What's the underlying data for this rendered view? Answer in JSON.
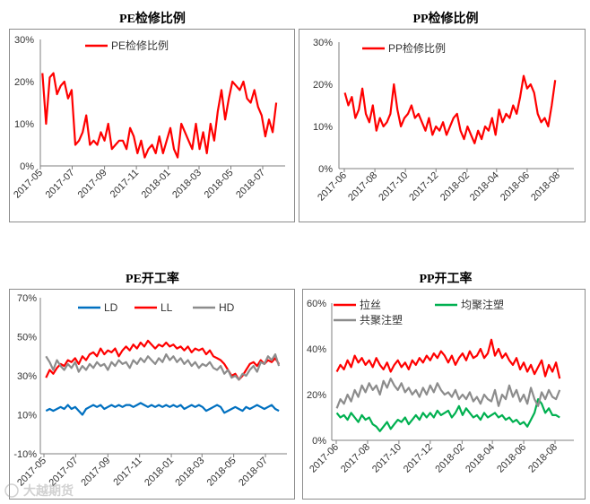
{
  "watermark": "大越期货",
  "chart_data": [
    {
      "type": "line",
      "title": "PE检修比例",
      "x_tick_labels": [
        "2017-05",
        "2017-07",
        "2017-09",
        "2017-11",
        "2018-01",
        "2018-03",
        "2018-05",
        "2018-07"
      ],
      "y_tick_labels": [
        "0%",
        "10%",
        "20%",
        "30%"
      ],
      "ylim": [
        0,
        30
      ],
      "grid": false,
      "legend_position": "top-left",
      "x": [
        "2017-05-05",
        "2017-05-12",
        "2017-05-19",
        "2017-05-26",
        "2017-06-02",
        "2017-06-09",
        "2017-06-16",
        "2017-06-23",
        "2017-06-30",
        "2017-07-07",
        "2017-07-14",
        "2017-07-21",
        "2017-07-28",
        "2017-08-04",
        "2017-08-11",
        "2017-08-18",
        "2017-08-25",
        "2017-09-01",
        "2017-09-08",
        "2017-09-15",
        "2017-09-22",
        "2017-09-29",
        "2017-10-06",
        "2017-10-13",
        "2017-10-20",
        "2017-10-27",
        "2017-11-03",
        "2017-11-10",
        "2017-11-17",
        "2017-11-24",
        "2017-12-01",
        "2017-12-08",
        "2017-12-15",
        "2017-12-22",
        "2017-12-29",
        "2018-01-05",
        "2018-01-12",
        "2018-01-19",
        "2018-01-26",
        "2018-02-02",
        "2018-02-09",
        "2018-02-16",
        "2018-02-23",
        "2018-03-02",
        "2018-03-09",
        "2018-03-16",
        "2018-03-23",
        "2018-03-30",
        "2018-04-06",
        "2018-04-13",
        "2018-04-20",
        "2018-04-27",
        "2018-05-04",
        "2018-05-11",
        "2018-05-18",
        "2018-05-25",
        "2018-06-01",
        "2018-06-08",
        "2018-06-15",
        "2018-06-22",
        "2018-06-29",
        "2018-07-06",
        "2018-07-13",
        "2018-07-20",
        "2018-07-27"
      ],
      "series": [
        {
          "name": "PE检修比例",
          "color": "#ff0000",
          "values": [
            22,
            10,
            21,
            22,
            17,
            19,
            20,
            16,
            18,
            5,
            6,
            8,
            12,
            5,
            6,
            5,
            8,
            6,
            10,
            4,
            5,
            6,
            6,
            4,
            9,
            7,
            3,
            6,
            2,
            4,
            5,
            3,
            7,
            3,
            6,
            9,
            4,
            2,
            10,
            8,
            6,
            4,
            10,
            4,
            8,
            3,
            10,
            6,
            13,
            18,
            11,
            16,
            20,
            19,
            18,
            20,
            16,
            15,
            18,
            14,
            12,
            7,
            11,
            8,
            15
          ]
        }
      ]
    },
    {
      "type": "line",
      "title": "PP检修比例",
      "x_tick_labels": [
        "2017-06",
        "2017-08",
        "2017-10",
        "2017-12",
        "2018-02",
        "2018-04",
        "2018-06",
        "2018-08"
      ],
      "y_tick_labels": [
        "0%",
        "10%",
        "20%",
        "30%"
      ],
      "ylim": [
        0,
        30
      ],
      "grid": false,
      "legend_position": "top-left",
      "x": [
        "2017-06-02",
        "2017-06-09",
        "2017-06-16",
        "2017-06-23",
        "2017-06-30",
        "2017-07-07",
        "2017-07-14",
        "2017-07-21",
        "2017-07-28",
        "2017-08-04",
        "2017-08-11",
        "2017-08-18",
        "2017-08-25",
        "2017-09-01",
        "2017-09-08",
        "2017-09-15",
        "2017-09-22",
        "2017-09-29",
        "2017-10-06",
        "2017-10-13",
        "2017-10-20",
        "2017-10-27",
        "2017-11-03",
        "2017-11-10",
        "2017-11-17",
        "2017-11-24",
        "2017-12-01",
        "2017-12-08",
        "2017-12-15",
        "2017-12-22",
        "2017-12-29",
        "2018-01-05",
        "2018-01-12",
        "2018-01-19",
        "2018-01-26",
        "2018-02-02",
        "2018-02-09",
        "2018-02-16",
        "2018-02-23",
        "2018-03-02",
        "2018-03-09",
        "2018-03-16",
        "2018-03-23",
        "2018-03-30",
        "2018-04-06",
        "2018-04-13",
        "2018-04-20",
        "2018-04-27",
        "2018-05-04",
        "2018-05-11",
        "2018-05-18",
        "2018-05-25",
        "2018-06-01",
        "2018-06-08",
        "2018-06-15",
        "2018-06-22",
        "2018-06-29",
        "2018-07-06",
        "2018-07-13",
        "2018-07-20",
        "2018-07-27"
      ],
      "series": [
        {
          "name": "PP检修比例",
          "color": "#ff0000",
          "values": [
            18,
            15,
            17,
            12,
            14,
            19,
            13,
            11,
            15,
            9,
            12,
            10,
            11,
            13,
            20,
            14,
            10,
            12,
            13,
            15,
            12,
            13,
            11,
            9,
            12,
            8,
            10,
            9,
            11,
            8,
            10,
            12,
            13,
            9,
            7,
            10,
            8,
            6,
            9,
            7,
            10,
            9,
            12,
            8,
            14,
            11,
            13,
            12,
            15,
            13,
            17,
            22,
            19,
            20,
            18,
            13,
            11,
            12,
            10,
            15,
            21
          ]
        }
      ]
    },
    {
      "type": "line",
      "title": "PE开工率",
      "x_tick_labels": [
        "2017-05",
        "2017-07",
        "2017-09",
        "2017-11",
        "2018-01",
        "2018-03",
        "2018-05",
        "2018-07"
      ],
      "y_tick_labels": [
        "-10%",
        "10%",
        "30%",
        "50%",
        "70%"
      ],
      "ylim": [
        -10,
        70
      ],
      "grid": false,
      "legend_position": "top",
      "x": [
        "2017-05-05",
        "2017-05-12",
        "2017-05-19",
        "2017-05-26",
        "2017-06-02",
        "2017-06-09",
        "2017-06-16",
        "2017-06-23",
        "2017-06-30",
        "2017-07-07",
        "2017-07-14",
        "2017-07-21",
        "2017-07-28",
        "2017-08-04",
        "2017-08-11",
        "2017-08-18",
        "2017-08-25",
        "2017-09-01",
        "2017-09-08",
        "2017-09-15",
        "2017-09-22",
        "2017-09-29",
        "2017-10-06",
        "2017-10-13",
        "2017-10-20",
        "2017-10-27",
        "2017-11-03",
        "2017-11-10",
        "2017-11-17",
        "2017-11-24",
        "2017-12-01",
        "2017-12-08",
        "2017-12-15",
        "2017-12-22",
        "2017-12-29",
        "2018-01-05",
        "2018-01-12",
        "2018-01-19",
        "2018-01-26",
        "2018-02-02",
        "2018-02-09",
        "2018-02-16",
        "2018-02-23",
        "2018-03-02",
        "2018-03-09",
        "2018-03-16",
        "2018-03-23",
        "2018-03-30",
        "2018-04-06",
        "2018-04-13",
        "2018-04-20",
        "2018-04-27",
        "2018-05-04",
        "2018-05-11",
        "2018-05-18",
        "2018-05-25",
        "2018-06-01",
        "2018-06-08",
        "2018-06-15",
        "2018-06-22",
        "2018-06-29",
        "2018-07-06",
        "2018-07-13",
        "2018-07-20",
        "2018-07-27"
      ],
      "series": [
        {
          "name": "LD",
          "color": "#0070c0",
          "values": [
            12,
            13,
            12,
            13,
            14,
            13,
            15,
            13,
            14,
            12,
            10,
            13,
            14,
            15,
            14,
            15,
            13,
            14,
            15,
            14,
            15,
            14,
            15,
            15,
            14,
            15,
            16,
            15,
            14,
            15,
            14,
            15,
            14,
            15,
            14,
            15,
            14,
            15,
            13,
            14,
            15,
            14,
            15,
            14,
            12,
            13,
            14,
            15,
            14,
            11,
            12,
            13,
            14,
            13,
            12,
            14,
            13,
            14,
            15,
            14,
            13,
            14,
            15,
            13,
            12
          ]
        },
        {
          "name": "LL",
          "color": "#ff0000",
          "values": [
            29,
            33,
            31,
            34,
            36,
            35,
            38,
            37,
            39,
            36,
            40,
            38,
            41,
            42,
            40,
            44,
            41,
            43,
            42,
            44,
            40,
            43,
            45,
            43,
            46,
            44,
            47,
            45,
            48,
            46,
            44,
            46,
            45,
            47,
            45,
            46,
            44,
            45,
            43,
            45,
            42,
            44,
            43,
            44,
            41,
            43,
            40,
            39,
            38,
            36,
            33,
            30,
            31,
            28,
            30,
            33,
            36,
            37,
            35,
            38,
            36,
            38,
            37,
            39,
            36
          ]
        },
        {
          "name": "HD",
          "color": "#8c8c8c",
          "values": [
            40,
            37,
            33,
            38,
            35,
            33,
            36,
            34,
            37,
            32,
            35,
            33,
            36,
            34,
            37,
            35,
            36,
            33,
            37,
            35,
            38,
            36,
            37,
            34,
            38,
            36,
            39,
            37,
            40,
            38,
            36,
            39,
            37,
            41,
            38,
            40,
            37,
            39,
            36,
            38,
            35,
            37,
            34,
            36,
            35,
            37,
            34,
            33,
            35,
            31,
            33,
            29,
            30,
            28,
            31,
            30,
            33,
            35,
            32,
            37,
            36,
            40,
            38,
            41,
            35
          ]
        }
      ]
    },
    {
      "type": "line",
      "title": "PP开工率",
      "x_tick_labels": [
        "2017-06",
        "2017-08",
        "2017-10",
        "2017-12",
        "2018-02",
        "2018-04",
        "2018-06",
        "2018-08"
      ],
      "y_tick_labels": [
        "0%",
        "20%",
        "40%",
        "60%"
      ],
      "ylim": [
        0,
        60
      ],
      "grid": false,
      "legend_position": "top-left",
      "x": [
        "2017-06-02",
        "2017-06-09",
        "2017-06-16",
        "2017-06-23",
        "2017-06-30",
        "2017-07-07",
        "2017-07-14",
        "2017-07-21",
        "2017-07-28",
        "2017-08-04",
        "2017-08-11",
        "2017-08-18",
        "2017-08-25",
        "2017-09-01",
        "2017-09-08",
        "2017-09-15",
        "2017-09-22",
        "2017-09-29",
        "2017-10-06",
        "2017-10-13",
        "2017-10-20",
        "2017-10-27",
        "2017-11-03",
        "2017-11-10",
        "2017-11-17",
        "2017-11-24",
        "2017-12-01",
        "2017-12-08",
        "2017-12-15",
        "2017-12-22",
        "2017-12-29",
        "2018-01-05",
        "2018-01-12",
        "2018-01-19",
        "2018-01-26",
        "2018-02-02",
        "2018-02-09",
        "2018-02-16",
        "2018-02-23",
        "2018-03-02",
        "2018-03-09",
        "2018-03-16",
        "2018-03-23",
        "2018-03-30",
        "2018-04-06",
        "2018-04-13",
        "2018-04-20",
        "2018-04-27",
        "2018-05-04",
        "2018-05-11",
        "2018-05-18",
        "2018-05-25",
        "2018-06-01",
        "2018-06-08",
        "2018-06-15",
        "2018-06-22",
        "2018-06-29",
        "2018-07-06",
        "2018-07-13",
        "2018-07-20",
        "2018-07-27",
        "2018-08-03",
        "2018-08-10"
      ],
      "series": [
        {
          "name": "拉丝",
          "color": "#ff0000",
          "values": [
            30,
            33,
            31,
            35,
            32,
            37,
            34,
            36,
            33,
            35,
            32,
            36,
            33,
            31,
            34,
            30,
            33,
            35,
            32,
            34,
            31,
            35,
            33,
            36,
            34,
            37,
            35,
            38,
            36,
            39,
            37,
            34,
            37,
            33,
            36,
            38,
            35,
            39,
            36,
            37,
            40,
            36,
            38,
            44,
            37,
            40,
            36,
            38,
            35,
            33,
            36,
            31,
            34,
            30,
            33,
            29,
            32,
            35,
            28,
            33,
            30,
            34,
            27
          ]
        },
        {
          "name": "均聚注塑",
          "color": "#00b050",
          "values": [
            12,
            10,
            11,
            9,
            12,
            10,
            8,
            11,
            9,
            10,
            7,
            6,
            4,
            6,
            8,
            5,
            7,
            9,
            8,
            10,
            7,
            9,
            11,
            9,
            12,
            10,
            12,
            10,
            13,
            11,
            12,
            13,
            10,
            12,
            15,
            11,
            14,
            12,
            10,
            11,
            9,
            12,
            10,
            11,
            12,
            10,
            11,
            9,
            10,
            8,
            9,
            7,
            8,
            6,
            9,
            12,
            18,
            16,
            12,
            14,
            11,
            11,
            10
          ]
        },
        {
          "name": "共聚注塑",
          "color": "#8c8c8c",
          "values": [
            14,
            18,
            16,
            20,
            17,
            22,
            19,
            24,
            21,
            25,
            22,
            24,
            20,
            26,
            23,
            27,
            24,
            22,
            25,
            21,
            23,
            20,
            22,
            19,
            23,
            20,
            24,
            21,
            25,
            22,
            20,
            21,
            19,
            22,
            18,
            20,
            18,
            21,
            17,
            19,
            16,
            20,
            18,
            17,
            22,
            15,
            20,
            18,
            24,
            19,
            22,
            17,
            20,
            16,
            23,
            18,
            15,
            21,
            18,
            22,
            19,
            18,
            22
          ]
        }
      ]
    }
  ]
}
